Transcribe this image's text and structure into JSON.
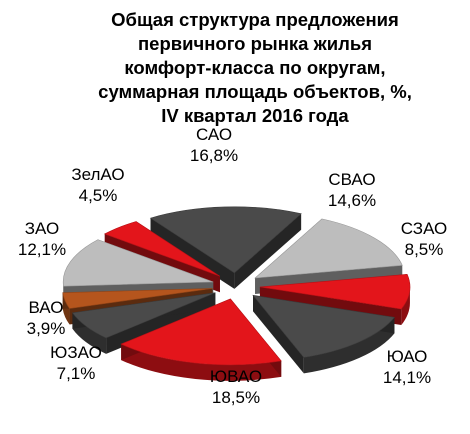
{
  "chart_data": {
    "type": "pie",
    "variant": "exploded-3d",
    "title_lines": [
      "Общая структура предложения",
      "первичного рынка жилья",
      "комфорт-класса по округам,",
      "суммарная площадь объектов, %,",
      "IV квартал 2016 года"
    ],
    "slices": [
      {
        "name": "САО",
        "value": 16.8,
        "value_label": "16,8%",
        "color": "#4a4a4a"
      },
      {
        "name": "СВАО",
        "value": 14.6,
        "value_label": "14,6%",
        "color": "#bdbdbd"
      },
      {
        "name": "СЗАО",
        "value": 8.5,
        "value_label": "8,5%",
        "color": "#e3151b"
      },
      {
        "name": "ЮАО",
        "value": 14.1,
        "value_label": "14,1%",
        "color": "#4a4a4a"
      },
      {
        "name": "ЮВАО",
        "value": 18.5,
        "value_label": "18,5%",
        "color": "#e3151b"
      },
      {
        "name": "ЮЗАО",
        "value": 7.1,
        "value_label": "7,1%",
        "color": "#4a4a4a"
      },
      {
        "name": "ВАО",
        "value": 3.9,
        "value_label": "3,9%",
        "color": "#b5551d"
      },
      {
        "name": "ЗАО",
        "value": 12.1,
        "value_label": "12,1%",
        "color": "#bdbdbd"
      },
      {
        "name": "ЗелАО",
        "value": 4.5,
        "value_label": "4,5%",
        "color": "#e3151b"
      }
    ],
    "legend": "none",
    "labels": "outside"
  }
}
